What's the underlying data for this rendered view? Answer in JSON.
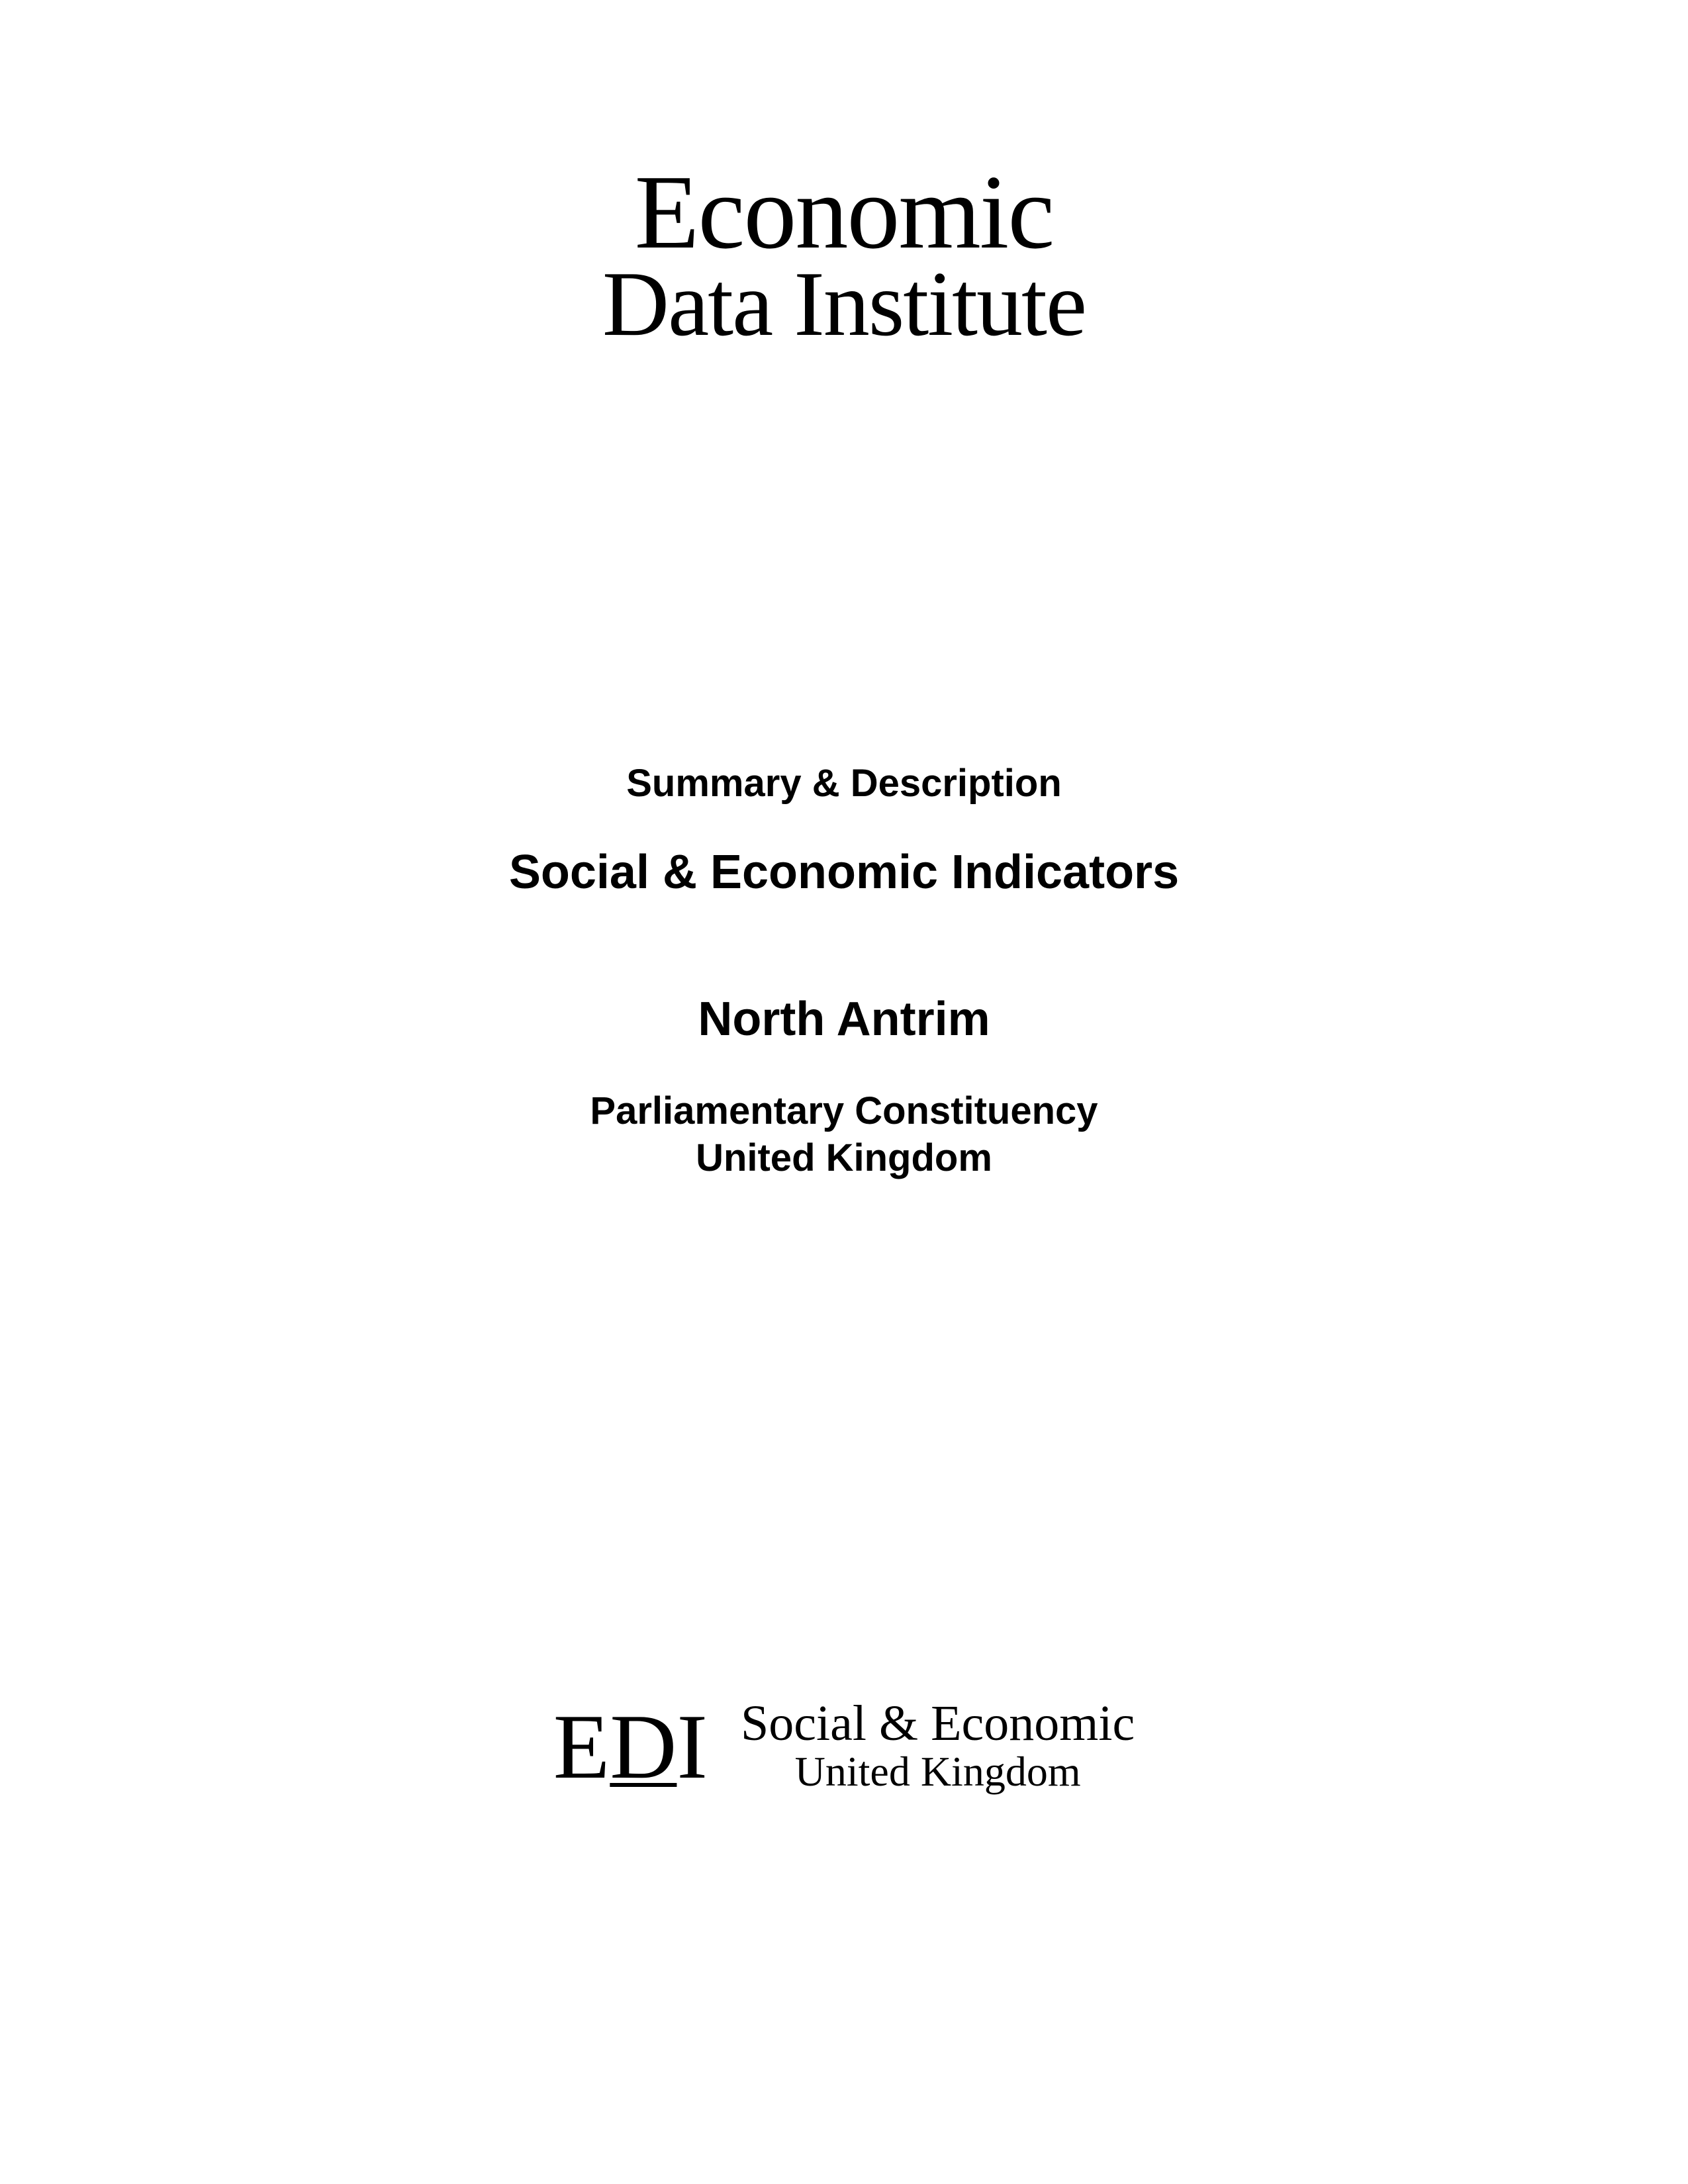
{
  "main_logo": {
    "line1": "Economic",
    "line2": "Data Institute"
  },
  "content": {
    "summary_desc": "Summary & Description",
    "indicators_title": "Social & Economic Indicators",
    "region_name": "North Antrim",
    "constituency": "Parliamentary Constituency",
    "country": "United Kingdom"
  },
  "footer_logo": {
    "mark_e": "E",
    "mark_d": "D",
    "mark_i": "I",
    "line1": "Social & Economic",
    "line2": "United Kingdom"
  },
  "colors": {
    "background": "#ffffff",
    "text": "#000000"
  }
}
